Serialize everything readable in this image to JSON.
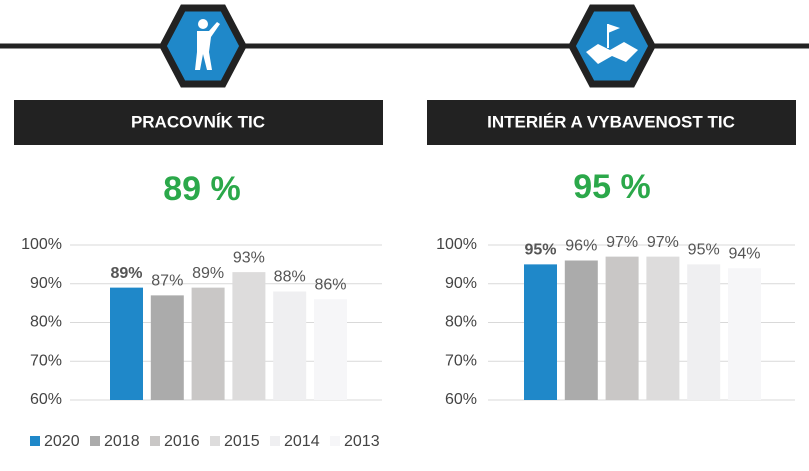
{
  "chart_data": [
    {
      "type": "bar",
      "title": "PRACOVNÍK TIC",
      "headline": "89 %",
      "values": [
        89,
        87,
        89,
        93,
        88,
        86
      ],
      "value_labels": [
        "89%",
        "87%",
        "89%",
        "93%",
        "88%",
        "86%"
      ],
      "ylim": [
        60,
        100
      ],
      "yticks": [
        {
          "value": 60,
          "label": "60%"
        },
        {
          "value": 70,
          "label": "70%"
        },
        {
          "value": 80,
          "label": "80%"
        },
        {
          "value": 90,
          "label": "90%"
        },
        {
          "value": 100,
          "label": "100%"
        }
      ],
      "grid": true
    },
    {
      "type": "bar",
      "title": "INTERIÉR A VYBAVENOST TIC",
      "headline": "95 %",
      "values": [
        95,
        96,
        97,
        97,
        95,
        94
      ],
      "value_labels": [
        "95%",
        "96%",
        "97%",
        "97%",
        "95%",
        "94%"
      ],
      "ylim": [
        60,
        100
      ],
      "yticks": [
        {
          "value": 60,
          "label": "60%"
        },
        {
          "value": 70,
          "label": "70%"
        },
        {
          "value": 80,
          "label": "80%"
        },
        {
          "value": 90,
          "label": "90%"
        },
        {
          "value": 100,
          "label": "100%"
        }
      ],
      "grid": true
    }
  ],
  "legend": [
    {
      "name": "2020",
      "color": "#1f88c9"
    },
    {
      "name": "2018",
      "color": "#ababab"
    },
    {
      "name": "2016",
      "color": "#c9c7c6"
    },
    {
      "name": "2015",
      "color": "#dddcdc"
    },
    {
      "name": "2014",
      "color": "#efeff1"
    },
    {
      "name": "2013",
      "color": "#f6f6f8"
    }
  ]
}
